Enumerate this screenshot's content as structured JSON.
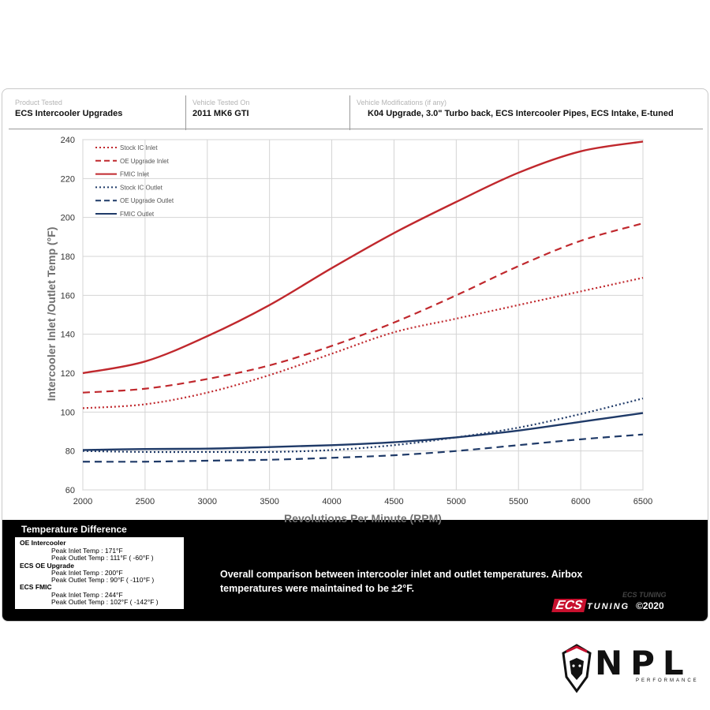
{
  "info_bar": {
    "product": {
      "label": "Product Tested",
      "value": "ECS Intercooler Upgrades"
    },
    "vehicle": {
      "label": "Vehicle Tested On",
      "value": "2011 MK6 GTI"
    },
    "mods": {
      "label": "Vehicle Modifications (if any)",
      "value": "K04 Upgrade, 3.0\" Turbo back, ECS Intercooler Pipes, ECS Intake, E-tuned"
    }
  },
  "chart_data": {
    "type": "line",
    "title": "",
    "xlabel": "Revolutions Per Minute (RPM)",
    "ylabel": "Intercooler Inlet /Outlet Temp (°F)",
    "xlim": [
      2000,
      6500
    ],
    "ylim": [
      60,
      240
    ],
    "x_ticks": [
      2000,
      2500,
      3000,
      3500,
      4000,
      4500,
      5000,
      5500,
      6000,
      6500
    ],
    "y_ticks": [
      60,
      80,
      100,
      120,
      140,
      160,
      180,
      200,
      220,
      240
    ],
    "grid": true,
    "legend_position": "top-left",
    "x": [
      2000,
      2500,
      3000,
      3500,
      4000,
      4500,
      5000,
      5500,
      6000,
      6500
    ],
    "series": [
      {
        "name": "Stock IC Inlet",
        "color": "#c0282d",
        "style": "dotted",
        "values": [
          102,
          104,
          110,
          119,
          130,
          141,
          148,
          155,
          162,
          169
        ]
      },
      {
        "name": "OE Upgrade Inlet",
        "color": "#c0282d",
        "style": "dashed",
        "values": [
          110,
          112,
          117,
          124,
          134,
          146,
          160,
          175,
          188,
          197
        ]
      },
      {
        "name": "FMIC Inlet",
        "color": "#c0282d",
        "style": "solid",
        "values": [
          120,
          126,
          139,
          155,
          174,
          192,
          208,
          223,
          234,
          239
        ]
      },
      {
        "name": "Stock IC Outlet",
        "color": "#1f3a68",
        "style": "dotted",
        "values": [
          80,
          79.5,
          79.5,
          79.5,
          80.5,
          83,
          87,
          92,
          99,
          107
        ]
      },
      {
        "name": "OE Upgrade Outlet",
        "color": "#1f3a68",
        "style": "dashed",
        "values": [
          74.5,
          74.5,
          75,
          75.5,
          76.5,
          77.8,
          80,
          83,
          86,
          88.5
        ]
      },
      {
        "name": "FMIC Outlet",
        "color": "#1f3a68",
        "style": "solid",
        "values": [
          80.5,
          81,
          81.2,
          82,
          83,
          84.5,
          87,
          90.5,
          95,
          99.5
        ]
      }
    ]
  },
  "temp_difference": {
    "title": "Temperature Difference",
    "groups": [
      {
        "name": "OE Intercooler",
        "lines": [
          "Peak Inlet Temp : 171°F",
          "Peak Outlet Temp : 111°F ( -60°F )"
        ]
      },
      {
        "name": "ECS OE Upgrade",
        "lines": [
          "Peak Inlet Temp : 200°F",
          "Peak Outlet Temp : 90°F ( -110°F )"
        ]
      },
      {
        "name": "ECS FMIC",
        "lines": [
          "Peak Inlet Temp : 244°F",
          "Peak Outlet Temp : 102°F ( -142°F )"
        ]
      }
    ]
  },
  "note": "Overall comparison between intercooler inlet and outlet temperatures. Airbox temperatures were maintained to be ±2°F.",
  "brand": {
    "ecs": "ECS",
    "tuning": "TUNING",
    "copyright": "©2020",
    "watermark": "ECS TUNING"
  },
  "npl_logo": {
    "name": "NPL",
    "sub": "PERFORMANCE"
  }
}
